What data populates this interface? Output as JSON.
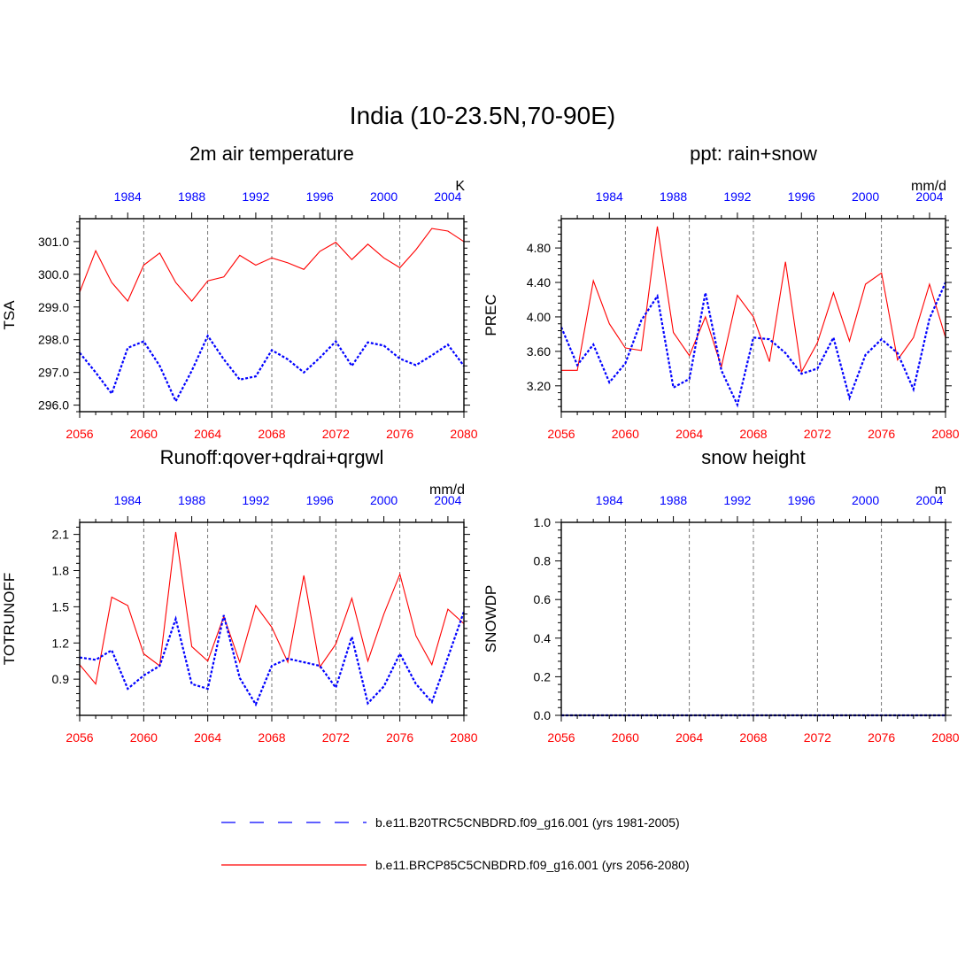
{
  "main_title": "India (10-23.5N,70-90E)",
  "colors": {
    "rcp": "#ff0000",
    "hist": "#0000ff",
    "axis": "#000000"
  },
  "bottom_ticks": [
    "2056",
    "2060",
    "2064",
    "2068",
    "2072",
    "2076",
    "2080"
  ],
  "top_ticks": [
    "1984",
    "1988",
    "1992",
    "1996",
    "2000",
    "2004"
  ],
  "legend": [
    {
      "label": "b.e11.B20TRC5CNBDRD.f09_g16.001 (yrs 1981-2005)",
      "style": "dashed",
      "color": "#0000ff"
    },
    {
      "label": "b.e11.BRCP85C5CNBDRD.f09_g16.001 (yrs 2056-2080)",
      "style": "solid",
      "color": "#ff0000"
    }
  ],
  "chart_data": [
    {
      "type": "line",
      "title": "2m air temperature",
      "ylabel": "TSA",
      "units": "K",
      "bottom_xlim": [
        2056,
        2080
      ],
      "top_xlim": [
        1981,
        2005
      ],
      "ylim": [
        295.8,
        301.7
      ],
      "yticks": [
        296.0,
        297.0,
        298.0,
        299.0,
        300.0,
        301.0
      ],
      "ytick_labels": [
        "296.0",
        "297.0",
        "298.0",
        "299.0",
        "300.0",
        "301.0"
      ],
      "yminor": 0.2,
      "series": [
        {
          "name": "b.e11.BRCP85C5CNBDRD.f09_g16.001 (yrs 2056-2080)",
          "axis": "bottom",
          "x_start": 2056,
          "values": [
            299.45,
            300.72,
            299.75,
            299.18,
            300.28,
            300.65,
            299.75,
            299.18,
            299.8,
            299.92,
            300.58,
            300.28,
            300.5,
            300.35,
            300.15,
            300.7,
            300.98,
            300.45,
            300.92,
            300.5,
            300.2,
            300.75,
            301.4,
            301.32,
            301.0
          ]
        },
        {
          "name": "b.e11.B20TRC5CNBDRD.f09_g16.001 (yrs 1981-2005)",
          "axis": "top",
          "x_start": 1981,
          "values": [
            297.6,
            297.0,
            296.35,
            297.75,
            297.95,
            297.2,
            296.12,
            297.05,
            298.12,
            297.4,
            296.78,
            296.88,
            297.68,
            297.4,
            297.0,
            297.45,
            297.95,
            297.2,
            297.92,
            297.82,
            297.42,
            297.22,
            297.52,
            297.85,
            297.2
          ]
        }
      ]
    },
    {
      "type": "line",
      "title": "ppt: rain+snow",
      "ylabel": "PREC",
      "units": "mm/d",
      "bottom_xlim": [
        2056,
        2080
      ],
      "top_xlim": [
        1981,
        2005
      ],
      "ylim": [
        2.9,
        5.14
      ],
      "yticks": [
        3.2,
        3.6,
        4.0,
        4.4,
        4.8
      ],
      "ytick_labels": [
        "3.20",
        "3.60",
        "4.00",
        "4.40",
        "4.80"
      ],
      "yminor": 0.08,
      "series": [
        {
          "name": "b.e11.BRCP85C5CNBDRD.f09_g16.001 (yrs 2056-2080)",
          "axis": "bottom",
          "x_start": 2056,
          "values": [
            3.38,
            3.38,
            4.42,
            3.92,
            3.64,
            3.61,
            5.05,
            3.82,
            3.55,
            4.0,
            3.42,
            4.25,
            4.0,
            3.48,
            4.64,
            3.36,
            3.7,
            4.28,
            3.72,
            4.38,
            4.51,
            3.5,
            3.76,
            4.38,
            3.76
          ]
        },
        {
          "name": "b.e11.B20TRC5CNBDRD.f09_g16.001 (yrs 1981-2005)",
          "axis": "top",
          "x_start": 1981,
          "values": [
            3.88,
            3.44,
            3.68,
            3.24,
            3.46,
            3.96,
            4.24,
            3.18,
            3.28,
            4.28,
            3.38,
            2.98,
            3.76,
            3.74,
            3.58,
            3.34,
            3.4,
            3.76,
            3.06,
            3.56,
            3.74,
            3.58,
            3.16,
            3.98,
            4.4
          ]
        }
      ]
    },
    {
      "type": "line",
      "title": "Runoff:qover+qdrai+qrgwl",
      "ylabel": "TOTRUNOFF",
      "units": "mm/d",
      "bottom_xlim": [
        2056,
        2080
      ],
      "top_xlim": [
        1981,
        2005
      ],
      "ylim": [
        0.6,
        2.2
      ],
      "yticks": [
        0.9,
        1.2,
        1.5,
        1.8,
        2.1
      ],
      "ytick_labels": [
        "0.9",
        "1.2",
        "1.5",
        "1.8",
        "2.1"
      ],
      "yminor": 0.06,
      "series": [
        {
          "name": "b.e11.BRCP85C5CNBDRD.f09_g16.001 (yrs 2056-2080)",
          "axis": "bottom",
          "x_start": 2056,
          "values": [
            1.02,
            0.86,
            1.58,
            1.51,
            1.11,
            1.01,
            2.12,
            1.17,
            1.05,
            1.42,
            1.04,
            1.51,
            1.33,
            1.04,
            1.76,
            1.0,
            1.19,
            1.57,
            1.05,
            1.44,
            1.77,
            1.26,
            1.02,
            1.48,
            1.36
          ]
        },
        {
          "name": "b.e11.B20TRC5CNBDRD.f09_g16.001 (yrs 1981-2005)",
          "axis": "top",
          "x_start": 1981,
          "values": [
            1.08,
            1.06,
            1.14,
            0.82,
            0.93,
            1.01,
            1.4,
            0.86,
            0.82,
            1.43,
            0.91,
            0.69,
            1.01,
            1.07,
            1.04,
            1.01,
            0.83,
            1.25,
            0.7,
            0.84,
            1.11,
            0.86,
            0.71,
            1.08,
            1.46
          ]
        }
      ]
    },
    {
      "type": "line",
      "title": "snow height",
      "ylabel": "SNOWDP",
      "units": "m",
      "bottom_xlim": [
        2056,
        2080
      ],
      "top_xlim": [
        1981,
        2005
      ],
      "ylim": [
        0.0,
        1.0
      ],
      "yticks": [
        0.0,
        0.2,
        0.4,
        0.6,
        0.8,
        1.0
      ],
      "ytick_labels": [
        "0.0",
        "0.2",
        "0.4",
        "0.6",
        "0.8",
        "1.0"
      ],
      "yminor": 0.04,
      "series": [
        {
          "name": "b.e11.BRCP85C5CNBDRD.f09_g16.001 (yrs 2056-2080)",
          "axis": "bottom",
          "x_start": 2056,
          "values": [
            0,
            0,
            0,
            0,
            0,
            0,
            0,
            0,
            0,
            0,
            0,
            0,
            0,
            0,
            0,
            0,
            0,
            0,
            0,
            0,
            0,
            0,
            0,
            0,
            0
          ]
        },
        {
          "name": "b.e11.B20TRC5CNBDRD.f09_g16.001 (yrs 1981-2005)",
          "axis": "top",
          "x_start": 1981,
          "values": [
            0,
            0,
            0,
            0,
            0,
            0,
            0,
            0,
            0,
            0,
            0,
            0,
            0,
            0,
            0,
            0,
            0,
            0,
            0,
            0,
            0,
            0,
            0,
            0,
            0
          ]
        }
      ]
    }
  ]
}
